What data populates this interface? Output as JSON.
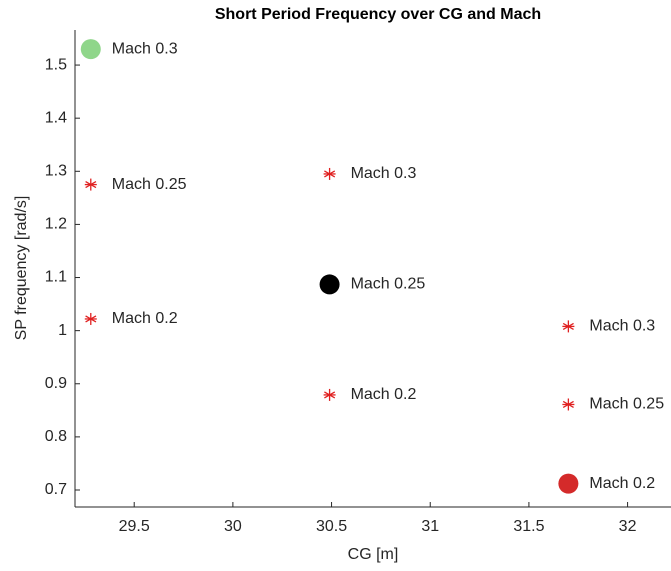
{
  "chart_data": {
    "type": "scatter",
    "title": "Short Period Frequency over CG and Mach",
    "x_label": "CG [m]",
    "y_label": "SP frequency [rad/s]",
    "xlim": [
      29.2,
      32.22
    ],
    "ylim": [
      0.668,
      1.566
    ],
    "xticks": [
      29.5,
      30,
      30.5,
      31,
      31.5,
      32
    ],
    "yticks": [
      0.7,
      0.8,
      0.9,
      1,
      1.1,
      1.2,
      1.3,
      1.4,
      1.5
    ],
    "points": [
      {
        "x": 29.28,
        "y": 1.53,
        "label": "Mach 0.3",
        "marker": "circle",
        "color": "#8fd68a"
      },
      {
        "x": 29.28,
        "y": 1.275,
        "label": "Mach 0.25",
        "marker": "star",
        "color": "#e02020"
      },
      {
        "x": 29.28,
        "y": 1.022,
        "label": "Mach 0.2",
        "marker": "star",
        "color": "#e02020"
      },
      {
        "x": 30.49,
        "y": 1.295,
        "label": "Mach 0.3",
        "marker": "star",
        "color": "#e02020"
      },
      {
        "x": 30.49,
        "y": 1.087,
        "label": "Mach 0.25",
        "marker": "circle",
        "color": "#000000"
      },
      {
        "x": 30.49,
        "y": 0.879,
        "label": "Mach 0.2",
        "marker": "star",
        "color": "#e02020"
      },
      {
        "x": 31.7,
        "y": 1.008,
        "label": "Mach 0.3",
        "marker": "star",
        "color": "#e02020"
      },
      {
        "x": 31.7,
        "y": 0.861,
        "label": "Mach 0.25",
        "marker": "star",
        "color": "#e02020"
      },
      {
        "x": 31.7,
        "y": 0.712,
        "label": "Mach 0.2",
        "marker": "circle",
        "color": "#d42a2a"
      }
    ]
  }
}
